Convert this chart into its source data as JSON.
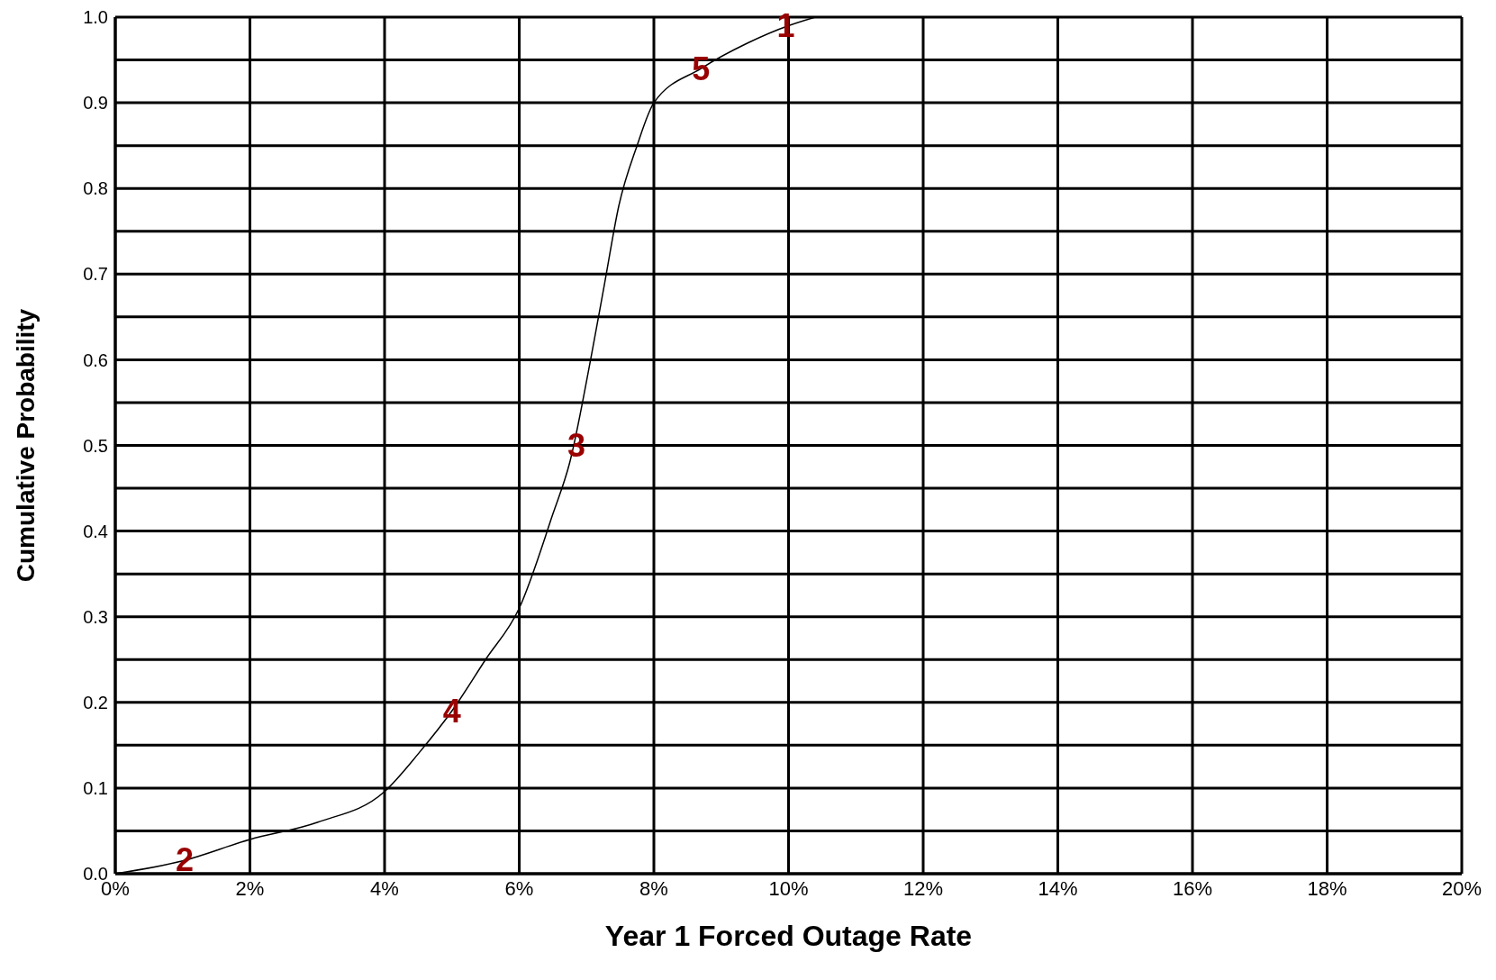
{
  "chart_data": {
    "type": "line",
    "xlabel": "Year 1 Forced Outage Rate",
    "ylabel": "Cumulative Probability",
    "x": [
      0,
      1,
      2,
      3,
      4,
      4.5,
      5,
      5.5,
      6,
      6.5,
      6.75,
      7.06,
      7.27,
      7.48,
      7.75,
      8,
      8.7,
      9.4,
      10,
      10.4
    ],
    "series": [
      {
        "color": "#000000",
        "values": [
          0,
          0.015,
          0.04,
          0.06,
          0.096,
          0.14,
          0.19,
          0.25,
          0.31,
          0.42,
          0.48,
          0.6,
          0.69,
          0.78,
          0.85,
          0.9,
          0.94,
          0.97,
          0.99,
          1.0
        ]
      }
    ],
    "xlim": [
      0,
      20
    ],
    "xticks": [
      {
        "value": 0,
        "label": "0%"
      },
      {
        "value": 2,
        "label": "2%"
      },
      {
        "value": 4,
        "label": "4%"
      },
      {
        "value": 6,
        "label": "6%"
      },
      {
        "value": 8,
        "label": "8%"
      },
      {
        "value": 10,
        "label": "10%"
      },
      {
        "value": 12,
        "label": "12%"
      },
      {
        "value": 14,
        "label": "14%"
      },
      {
        "value": 16,
        "label": "16%"
      },
      {
        "value": 18,
        "label": "18%"
      },
      {
        "value": 20,
        "label": "20%"
      }
    ],
    "ylim": [
      0,
      1
    ],
    "yticks": [
      {
        "value": 0,
        "label": "0.0"
      },
      {
        "value": 0.05,
        "label": null
      },
      {
        "value": 0.1,
        "label": "0.1"
      },
      {
        "value": 0.15,
        "label": null
      },
      {
        "value": 0.2,
        "label": "0.2"
      },
      {
        "value": 0.25,
        "label": null
      },
      {
        "value": 0.3,
        "label": "0.3"
      },
      {
        "value": 0.35,
        "label": null
      },
      {
        "value": 0.4,
        "label": "0.4"
      },
      {
        "value": 0.45,
        "label": null
      },
      {
        "value": 0.5,
        "label": "0.5"
      },
      {
        "value": 0.55,
        "label": null
      },
      {
        "value": 0.6,
        "label": "0.6"
      },
      {
        "value": 0.65,
        "label": null
      },
      {
        "value": 0.7,
        "label": "0.7"
      },
      {
        "value": 0.75,
        "label": null
      },
      {
        "value": 0.8,
        "label": "0.8"
      },
      {
        "value": 0.85,
        "label": null
      },
      {
        "value": 0.9,
        "label": "0.9"
      },
      {
        "value": 0.95,
        "label": null
      },
      {
        "value": 1,
        "label": "1.0"
      }
    ],
    "grid": true,
    "marker": "none",
    "line_style": "solid",
    "annotations": [
      {
        "text": "1",
        "x": 9.96,
        "y": 0.99
      },
      {
        "text": "2",
        "x": 1.03,
        "y": 0.017
      },
      {
        "text": "3",
        "x": 6.85,
        "y": 0.5
      },
      {
        "text": "4",
        "x": 5,
        "y": 0.19
      },
      {
        "text": "5",
        "x": 8.7,
        "y": 0.94
      }
    ]
  }
}
